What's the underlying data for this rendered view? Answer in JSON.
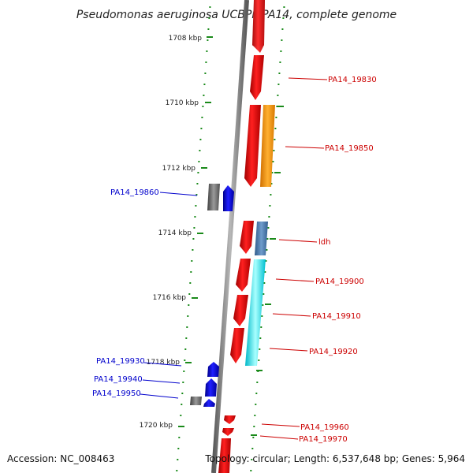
{
  "title": "Pseudomonas aeruginosa UCBPP-PA14, complete genome",
  "footer": {
    "accession": "Accession: NC_008463",
    "summary": "Topology: circular; Length: 6,537,648 bp; Genes: 5,964"
  },
  "colors": {
    "forward_cds": "#ff0000",
    "reverse_cds": "#0000ff",
    "pseudo_gray": "#707070",
    "orange_feature": "#ff9900",
    "steel_feature": "#4477aa",
    "cyan_feature": "#00e5ee",
    "ruler_ticks": "#1a8a1a",
    "backbone": "#808080"
  },
  "kbp_ticks": [
    "1708 kbp",
    "1710 kbp",
    "1712 kbp",
    "1714 kbp",
    "1716 kbp",
    "1718 kbp",
    "1720 kbp"
  ],
  "genes_right": [
    "PA14_19830",
    "PA14_19850",
    "ldh",
    "PA14_19900",
    "PA14_19910",
    "PA14_19920",
    "PA14_19960",
    "PA14_19970"
  ],
  "genes_left": [
    "PA14_19860",
    "PA14_19930",
    "PA14_19940",
    "PA14_19950"
  ]
}
